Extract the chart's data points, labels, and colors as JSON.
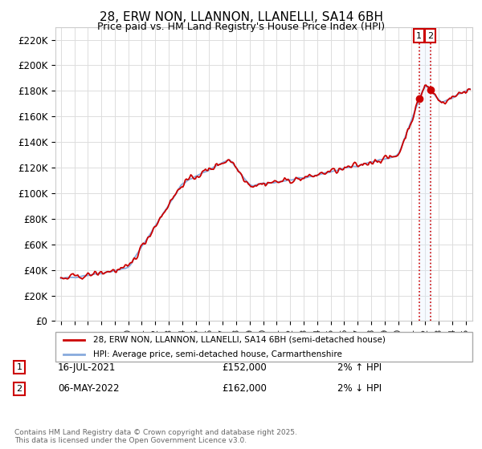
{
  "title": "28, ERW NON, LLANNON, LLANELLI, SA14 6BH",
  "subtitle": "Price paid vs. HM Land Registry's House Price Index (HPI)",
  "ylabel_values": [
    "£0",
    "£20K",
    "£40K",
    "£60K",
    "£80K",
    "£100K",
    "£120K",
    "£140K",
    "£160K",
    "£180K",
    "£200K",
    "£220K"
  ],
  "ylim": [
    0,
    230000
  ],
  "yticks": [
    0,
    20000,
    40000,
    60000,
    80000,
    100000,
    120000,
    140000,
    160000,
    180000,
    200000,
    220000
  ],
  "line1_color": "#cc0000",
  "line2_color": "#88aadd",
  "line1_label": "28, ERW NON, LLANNON, LLANELLI, SA14 6BH (semi-detached house)",
  "line2_label": "HPI: Average price, semi-detached house, Carmarthenshire",
  "sale1_date": "16-JUL-2021",
  "sale1_price": "£152,000",
  "sale1_note": "2% ↑ HPI",
  "sale2_date": "06-MAY-2022",
  "sale2_price": "£162,000",
  "sale2_note": "2% ↓ HPI",
  "footer": "Contains HM Land Registry data © Crown copyright and database right 2025.\nThis data is licensed under the Open Government Licence v3.0.",
  "vline_color": "#cc0000",
  "shade_color": "#ddeeff",
  "background_color": "#ffffff",
  "grid_color": "#dddddd",
  "sale1_t": 2021.542,
  "sale2_t": 2022.375,
  "sale1_price_val": 152000,
  "sale2_price_val": 162000
}
